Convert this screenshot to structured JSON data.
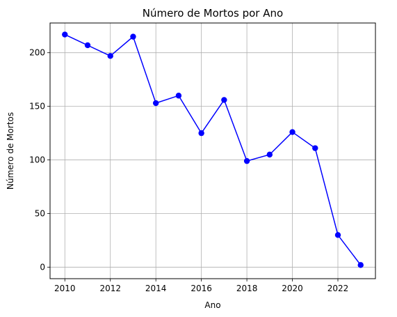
{
  "chart_data": {
    "type": "line",
    "title": "Número de Mortos por Ano",
    "xlabel": "Ano",
    "ylabel": "Número de Mortos",
    "x": [
      2010,
      2011,
      2012,
      2013,
      2014,
      2015,
      2016,
      2017,
      2018,
      2019,
      2020,
      2021,
      2022,
      2023
    ],
    "series": [
      {
        "values": [
          217,
          207,
          197,
          215,
          153,
          160,
          125,
          156,
          99,
          105,
          126,
          111,
          30,
          2
        ],
        "color": "#0000ff",
        "marker": "circle"
      }
    ],
    "xticks": [
      "2010",
      "2012",
      "2014",
      "2016",
      "2018",
      "2020",
      "2022"
    ],
    "yticks": [
      "0",
      "50",
      "100",
      "150",
      "200"
    ],
    "xlim": [
      2009.35,
      2023.65
    ],
    "ylim": [
      -10.75,
      227.75
    ],
    "grid": true
  }
}
